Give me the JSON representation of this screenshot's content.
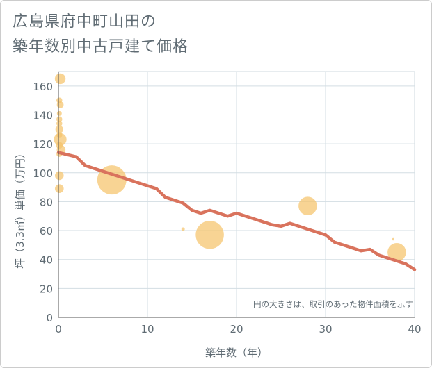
{
  "title_lines": [
    "広島県府中町山田の",
    "築年数別中古戸建て価格"
  ],
  "chart_data": {
    "type": "scatter",
    "title": "広島県府中町山田の築年数別中古戸建て価格",
    "xlabel": "築年数（年）",
    "ylabel": "坪（3.3㎡）単価（万円）",
    "xlim": [
      0,
      40
    ],
    "ylim": [
      0,
      170
    ],
    "x_ticks": [
      "0",
      "10",
      "20",
      "30",
      "40"
    ],
    "y_ticks": [
      "0",
      "20",
      "40",
      "60",
      "80",
      "100",
      "120",
      "140",
      "160"
    ],
    "grid": true,
    "annotation": "円の大きさは、取引のあった物件面積を示す",
    "colors": {
      "bubble": "#f5c36b",
      "line": "#d9735d",
      "grid": "#d3dde3",
      "axis": "#5f6b73"
    },
    "bubbles": [
      {
        "x": 0.2,
        "y": 165,
        "s": 1.1
      },
      {
        "x": 0.1,
        "y": 150,
        "s": 0.6
      },
      {
        "x": 0.2,
        "y": 147,
        "s": 0.7
      },
      {
        "x": 0.1,
        "y": 141,
        "s": 0.5
      },
      {
        "x": 0.1,
        "y": 137,
        "s": 0.6
      },
      {
        "x": 0.1,
        "y": 134,
        "s": 0.6
      },
      {
        "x": 0.1,
        "y": 130,
        "s": 0.8
      },
      {
        "x": 0.1,
        "y": 126,
        "s": 0.6
      },
      {
        "x": 0.2,
        "y": 123,
        "s": 1.3
      },
      {
        "x": 0.1,
        "y": 119,
        "s": 0.7
      },
      {
        "x": 0.3,
        "y": 116,
        "s": 0.9
      },
      {
        "x": 0.1,
        "y": 113,
        "s": 0.6
      },
      {
        "x": 0.1,
        "y": 98,
        "s": 0.9
      },
      {
        "x": 0.1,
        "y": 89,
        "s": 0.9
      },
      {
        "x": 6,
        "y": 95,
        "s": 3.0
      },
      {
        "x": 14,
        "y": 61,
        "s": 0.35
      },
      {
        "x": 17,
        "y": 57,
        "s": 2.9
      },
      {
        "x": 28,
        "y": 77,
        "s": 1.9
      },
      {
        "x": 37.6,
        "y": 54,
        "s": 0.25
      },
      {
        "x": 38,
        "y": 45,
        "s": 1.9
      }
    ],
    "series": [
      {
        "name": "trend",
        "x": [
          0,
          2,
          3,
          5,
          7,
          9,
          11,
          12,
          14,
          15,
          16,
          17,
          19,
          20,
          22,
          24,
          25,
          26,
          28,
          30,
          31,
          32,
          34,
          35,
          36,
          37,
          39,
          40
        ],
        "values": [
          114,
          111,
          105,
          101,
          97,
          93,
          89,
          83,
          79,
          74,
          72,
          74,
          70,
          72,
          68,
          64,
          63,
          65,
          61,
          57,
          52,
          50,
          46,
          47,
          43,
          41,
          37,
          33
        ]
      }
    ]
  }
}
